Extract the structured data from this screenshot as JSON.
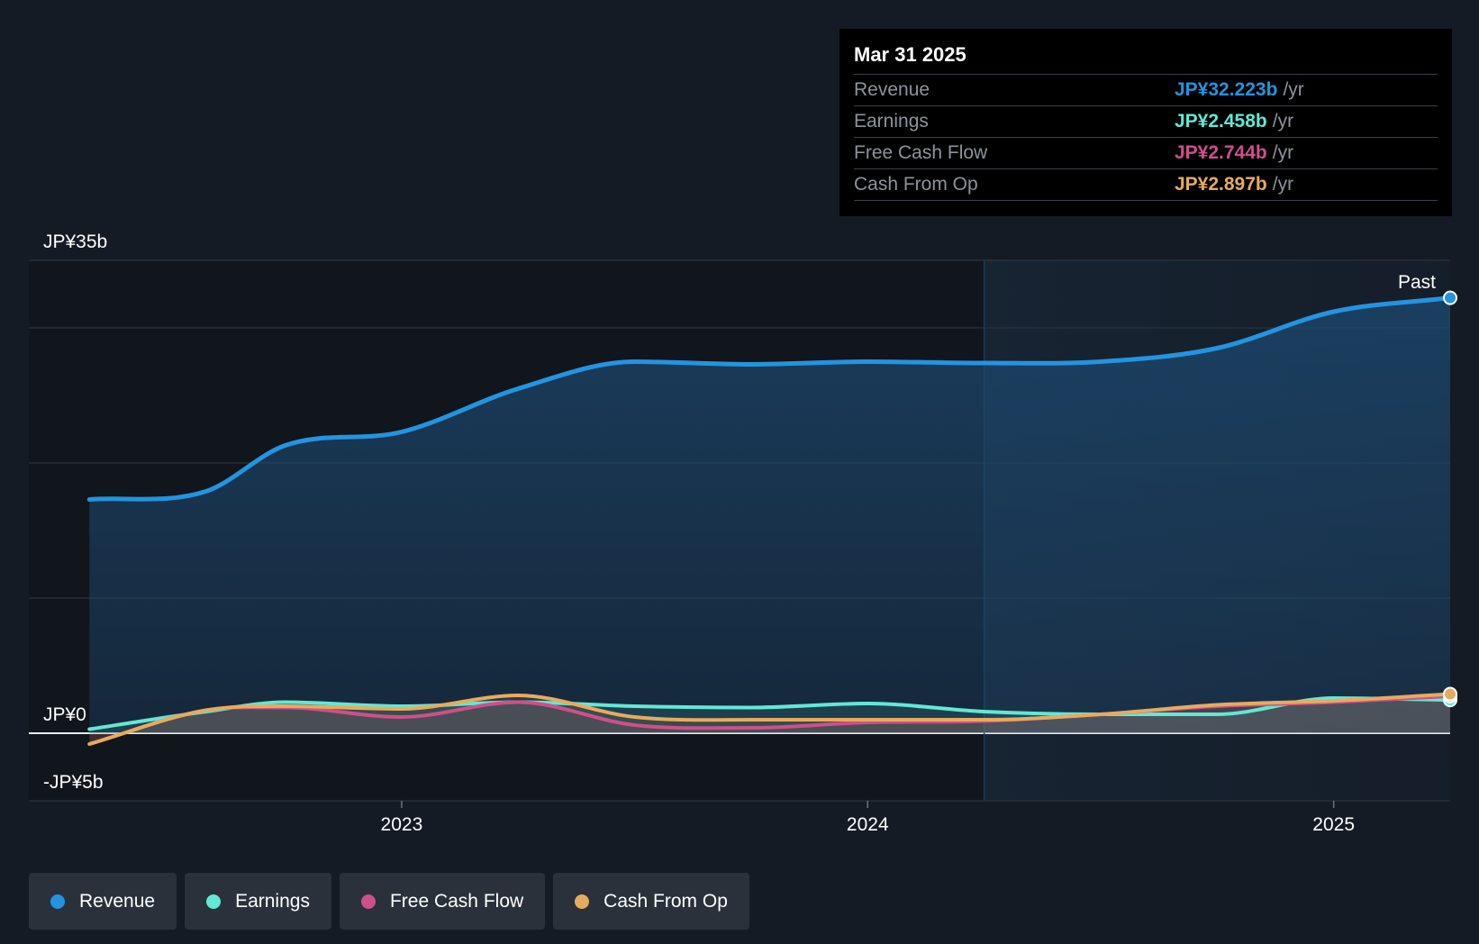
{
  "tooltip": {
    "date": "Mar 31 2025",
    "rows": [
      {
        "label": "Revenue",
        "value": "JP¥32.223b",
        "unit": "/yr",
        "color": "#2394e0"
      },
      {
        "label": "Earnings",
        "value": "JP¥2.458b",
        "unit": "/yr",
        "color": "#62e8d4"
      },
      {
        "label": "Free Cash Flow",
        "value": "JP¥2.744b",
        "unit": "/yr",
        "color": "#cf4f8b"
      },
      {
        "label": "Cash From Op",
        "value": "JP¥2.897b",
        "unit": "/yr",
        "color": "#e7ab5d"
      }
    ]
  },
  "chart_data": {
    "type": "line",
    "title": "",
    "xlabel": "",
    "ylabel": "",
    "ylim": [
      -5,
      35
    ],
    "y_tick_labels": [
      {
        "value": 35,
        "label": "JP¥35b"
      },
      {
        "value": 0,
        "label": "JP¥0"
      },
      {
        "value": -5,
        "label": "-JP¥5b"
      }
    ],
    "gridlines": [
      35,
      30,
      20,
      10,
      0,
      -5
    ],
    "x_range": [
      2022.2,
      2025.25
    ],
    "x_tick_labels": [
      {
        "value": 2023,
        "label": "2023"
      },
      {
        "value": 2024,
        "label": "2024"
      },
      {
        "value": 2025,
        "label": "2025"
      }
    ],
    "past_label": "Past",
    "past_start": 2024.25,
    "unit": "JP¥ billions",
    "series": [
      {
        "name": "Revenue",
        "color": "#2394e0",
        "points": [
          [
            2022.33,
            17.3
          ],
          [
            2022.58,
            17.9
          ],
          [
            2022.75,
            21.3
          ],
          [
            2023.0,
            22.3
          ],
          [
            2023.25,
            25.5
          ],
          [
            2023.5,
            27.5
          ],
          [
            2023.75,
            27.3
          ],
          [
            2024.0,
            27.5
          ],
          [
            2024.25,
            27.4
          ],
          [
            2024.5,
            27.5
          ],
          [
            2024.75,
            28.5
          ],
          [
            2025.0,
            31.2
          ],
          [
            2025.25,
            32.223
          ]
        ]
      },
      {
        "name": "Earnings",
        "color": "#62e8d4",
        "points": [
          [
            2022.33,
            0.3
          ],
          [
            2022.58,
            1.6
          ],
          [
            2022.75,
            2.3
          ],
          [
            2023.0,
            2.0
          ],
          [
            2023.25,
            2.3
          ],
          [
            2023.5,
            2.0
          ],
          [
            2023.75,
            1.9
          ],
          [
            2024.0,
            2.2
          ],
          [
            2024.25,
            1.6
          ],
          [
            2024.5,
            1.4
          ],
          [
            2024.75,
            1.4
          ],
          [
            2025.0,
            2.6
          ],
          [
            2025.25,
            2.458
          ]
        ]
      },
      {
        "name": "Free Cash Flow",
        "color": "#cf4f8b",
        "points": [
          [
            2022.33,
            -0.8
          ],
          [
            2022.58,
            1.7
          ],
          [
            2022.75,
            1.9
          ],
          [
            2023.0,
            1.2
          ],
          [
            2023.25,
            2.3
          ],
          [
            2023.5,
            0.6
          ],
          [
            2023.75,
            0.4
          ],
          [
            2024.0,
            0.8
          ],
          [
            2024.25,
            0.9
          ],
          [
            2024.5,
            1.4
          ],
          [
            2024.75,
            2.0
          ],
          [
            2025.0,
            2.3
          ],
          [
            2025.25,
            2.744
          ]
        ]
      },
      {
        "name": "Cash From Op",
        "color": "#e7ab5d",
        "points": [
          [
            2022.33,
            -0.8
          ],
          [
            2022.58,
            1.7
          ],
          [
            2022.75,
            2.0
          ],
          [
            2023.0,
            1.8
          ],
          [
            2023.25,
            2.8
          ],
          [
            2023.5,
            1.2
          ],
          [
            2023.75,
            1.0
          ],
          [
            2024.0,
            1.0
          ],
          [
            2024.25,
            1.0
          ],
          [
            2024.5,
            1.4
          ],
          [
            2024.75,
            2.1
          ],
          [
            2025.0,
            2.4
          ],
          [
            2025.25,
            2.897
          ]
        ]
      }
    ]
  },
  "legend": [
    {
      "label": "Revenue",
      "color": "#2394e0"
    },
    {
      "label": "Earnings",
      "color": "#62e8d4"
    },
    {
      "label": "Free Cash Flow",
      "color": "#cf4f8b"
    },
    {
      "label": "Cash From Op",
      "color": "#e7ab5d"
    }
  ]
}
